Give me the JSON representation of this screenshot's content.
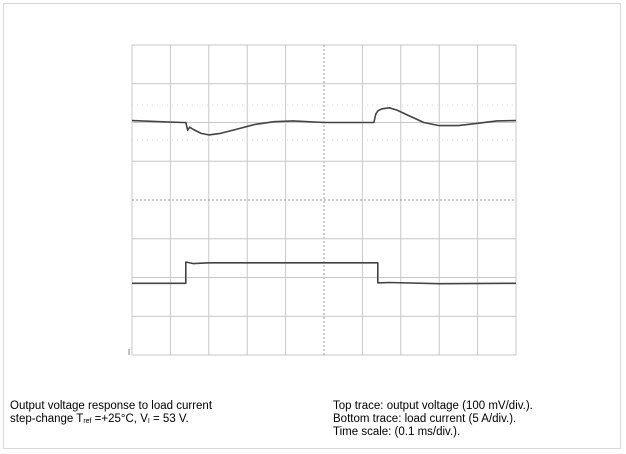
{
  "chart_data": {
    "type": "line",
    "grid": true,
    "divisions": {
      "x": 10,
      "y": 8
    },
    "trace_color": "#444444",
    "grid_color": "#c8c8c8",
    "series": [
      {
        "units": "div",
        "x": [
          0.0,
          1.3,
          1.4,
          1.45,
          1.5,
          1.6,
          1.8,
          2.0,
          2.3,
          2.7,
          3.2,
          3.7,
          4.2,
          5.0,
          5.8,
          6.2,
          6.3,
          6.35,
          6.4,
          6.5,
          6.7,
          6.9,
          7.2,
          7.6,
          8.0,
          8.5,
          9.0,
          9.5,
          10.0
        ],
        "y": [
          6.05,
          6.0,
          6.0,
          5.8,
          5.88,
          5.82,
          5.72,
          5.68,
          5.72,
          5.82,
          5.95,
          6.02,
          6.04,
          6.0,
          6.0,
          6.0,
          6.0,
          6.22,
          6.3,
          6.35,
          6.38,
          6.32,
          6.18,
          6.0,
          5.92,
          5.92,
          5.98,
          6.04,
          6.05
        ]
      },
      {
        "units": "div",
        "x": [
          0.0,
          1.4,
          1.4,
          1.6,
          2.0,
          4.0,
          6.0,
          6.4,
          6.4,
          6.7,
          8.0,
          10.0
        ],
        "y": [
          1.85,
          1.85,
          2.4,
          2.36,
          2.38,
          2.38,
          2.38,
          2.38,
          1.86,
          1.87,
          1.84,
          1.85
        ]
      }
    ]
  },
  "caption_left": {
    "line1": "Output voltage response to load current",
    "line2_prefix": "step-change  T",
    "tref_sub": "ref",
    "line2_mid": " =+25°C, V",
    "vi_sub": "I",
    "line2_suffix": " = 53 V."
  },
  "caption_right": {
    "line1": "Top trace: output voltage (100 mV/div.).",
    "line2": "Bottom trace: load current (5 A/div.).",
    "line3": "Time scale: (0.1 ms/div.)."
  }
}
